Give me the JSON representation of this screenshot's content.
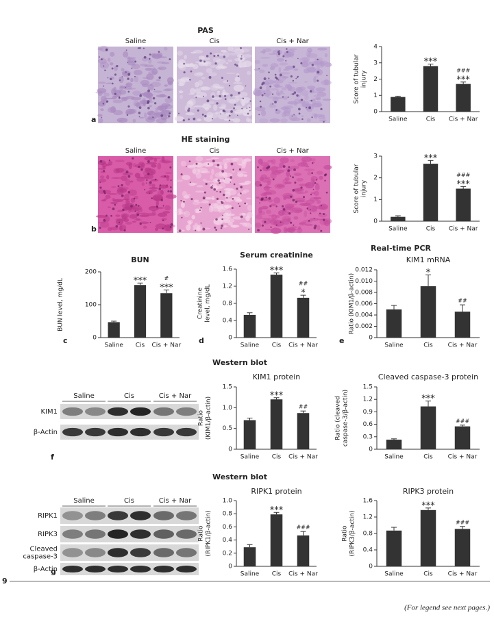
{
  "figure_number": "9",
  "footer": "(For legend see next pages.)",
  "panel_letters": [
    "a",
    "b",
    "c",
    "d",
    "e",
    "f",
    "g"
  ],
  "sections": {
    "pas": "PAS",
    "he": "HE staining",
    "pcr": "Real-time PCR",
    "wb1": "Western blot",
    "wb2": "Western blot"
  },
  "pas_images": {
    "labels": [
      "Saline",
      "Cis",
      "Cis + Nar"
    ]
  },
  "he_images": {
    "labels": [
      "Saline",
      "Cis",
      "Cis + Nar"
    ]
  },
  "blot_f": {
    "groups": [
      "Saline",
      "Cis",
      "Cis + Nar"
    ],
    "rows": [
      [
        "KIM1"
      ],
      [
        "β-Actin"
      ]
    ]
  },
  "blot_g": {
    "groups": [
      "Saline",
      "Cis",
      "Cis + Nar"
    ],
    "rows": [
      [
        "RIPK1"
      ],
      [
        "RIPK3"
      ],
      [
        "Cleaved",
        "caspase-3"
      ],
      [
        "β-Actin"
      ]
    ]
  },
  "chart_data": [
    {
      "type": "bar",
      "ylabel": [
        "Score of tubular",
        "injury"
      ],
      "categories": [
        "Saline",
        "Cis",
        "Cis + Nar"
      ],
      "values": [
        0.9,
        2.8,
        1.7
      ],
      "errors": [
        0.05,
        0.12,
        0.12
      ],
      "bar_labels": [
        null,
        [
          "***"
        ],
        [
          "###",
          "***"
        ]
      ],
      "color": "#333333",
      "ylim": [
        0,
        4
      ],
      "yticks": [
        0,
        1,
        2,
        3,
        4
      ]
    },
    {
      "type": "bar",
      "ylabel": [
        "Score of tubular",
        "injury"
      ],
      "categories": [
        "Saline",
        "Cis",
        "Cis + Nar"
      ],
      "values": [
        0.2,
        2.65,
        1.5
      ],
      "errors": [
        0.05,
        0.15,
        0.1
      ],
      "bar_labels": [
        null,
        [
          "***"
        ],
        [
          "###",
          "***"
        ]
      ],
      "color": "#333333",
      "ylim": [
        0,
        3
      ],
      "yticks": [
        0,
        1,
        2,
        3
      ]
    },
    {
      "type": "bar",
      "title": "BUN",
      "ylabel": [
        "BUN level, mg/dL"
      ],
      "categories": [
        "Saline",
        "Cis",
        "Cis + Nar"
      ],
      "values": [
        47,
        160,
        135
      ],
      "errors": [
        3,
        6,
        10
      ],
      "bar_labels": [
        null,
        [
          "***"
        ],
        [
          "#",
          "***"
        ]
      ],
      "color": "#333333",
      "ylim": [
        0,
        200
      ],
      "yticks": [
        0,
        100,
        200
      ]
    },
    {
      "type": "bar",
      "title": "Serum creatinine",
      "ylabel": [
        "Creatinine",
        "level, mg/dL"
      ],
      "categories": [
        "Saline",
        "Cis",
        "Cis + Nar"
      ],
      "values": [
        0.53,
        1.47,
        0.93
      ],
      "errors": [
        0.05,
        0.04,
        0.06
      ],
      "bar_labels": [
        null,
        [
          "***"
        ],
        [
          "##",
          "*"
        ]
      ],
      "color": "#333333",
      "ylim": [
        0,
        1.6
      ],
      "yticks": [
        0,
        0.4,
        0.8,
        1.2,
        1.6
      ]
    },
    {
      "type": "bar",
      "title": "KIM1 mRNA",
      "ylabel": [
        "Ratio (KIM1/β-actin)"
      ],
      "categories": [
        "Saline",
        "Cis",
        "Cis + Nar"
      ],
      "values": [
        0.005,
        0.0091,
        0.0046
      ],
      "errors": [
        0.0007,
        0.002,
        0.0012
      ],
      "bar_labels": [
        null,
        [
          "*"
        ],
        [
          "##"
        ]
      ],
      "color": "#333333",
      "ylim": [
        0,
        0.012
      ],
      "yticks": [
        0,
        0.002,
        0.004,
        0.006,
        0.008,
        {
          "value": 0.01,
          "label": "0.010"
        },
        0.012
      ]
    },
    {
      "type": "bar",
      "title": "KIM1 protein",
      "ylabel": [
        "Ratio",
        "(KIM1/β-actin)"
      ],
      "categories": [
        "Saline",
        "Cis",
        "Cis + Nar"
      ],
      "values": [
        0.7,
        1.2,
        0.87
      ],
      "errors": [
        0.05,
        0.04,
        0.05
      ],
      "bar_labels": [
        null,
        [
          "***"
        ],
        [
          "##"
        ]
      ],
      "color": "#333333",
      "ylim": [
        0,
        1.5
      ],
      "yticks": [
        0,
        0.5,
        {
          "value": 1,
          "label": "1.0"
        },
        1.5
      ]
    },
    {
      "type": "bar",
      "title": "Cleaved caspase-3 protein",
      "ylabel": [
        "Ratio (cleaved",
        "caspase-3/β-actin)"
      ],
      "categories": [
        "Saline",
        "Cis",
        "Cis + Nar"
      ],
      "values": [
        0.23,
        1.03,
        0.55
      ],
      "errors": [
        0.02,
        0.13,
        0.03
      ],
      "bar_labels": [
        null,
        [
          "***"
        ],
        [
          "###"
        ]
      ],
      "color": "#333333",
      "ylim": [
        0,
        1.5
      ],
      "yticks": [
        0,
        0.3,
        0.6,
        0.9,
        1.2,
        1.5
      ]
    },
    {
      "type": "bar",
      "title": "RIPK1 protein",
      "ylabel": [
        "Ratio",
        "(RIPK1/β-actin)"
      ],
      "categories": [
        "Saline",
        "Cis",
        "Cis + Nar"
      ],
      "values": [
        0.29,
        0.79,
        0.47
      ],
      "errors": [
        0.04,
        0.03,
        0.06
      ],
      "bar_labels": [
        null,
        [
          "***"
        ],
        [
          "###"
        ]
      ],
      "color": "#333333",
      "ylim": [
        0,
        1
      ],
      "yticks": [
        0,
        0.2,
        0.4,
        0.6,
        0.8,
        {
          "value": 1,
          "label": "1.0"
        }
      ]
    },
    {
      "type": "bar",
      "title": "RIPK3 protein",
      "ylabel": [
        "Ratio",
        "(RIPK3/β-actin)"
      ],
      "categories": [
        "Saline",
        "Cis",
        "Cis + Nar"
      ],
      "values": [
        0.87,
        1.37,
        0.91
      ],
      "errors": [
        0.08,
        0.05,
        0.06
      ],
      "bar_labels": [
        null,
        [
          "***"
        ],
        [
          "###"
        ]
      ],
      "color": "#333333",
      "ylim": [
        0,
        1.6
      ],
      "yticks": [
        0,
        0.4,
        0.8,
        1.2,
        1.6
      ]
    }
  ]
}
